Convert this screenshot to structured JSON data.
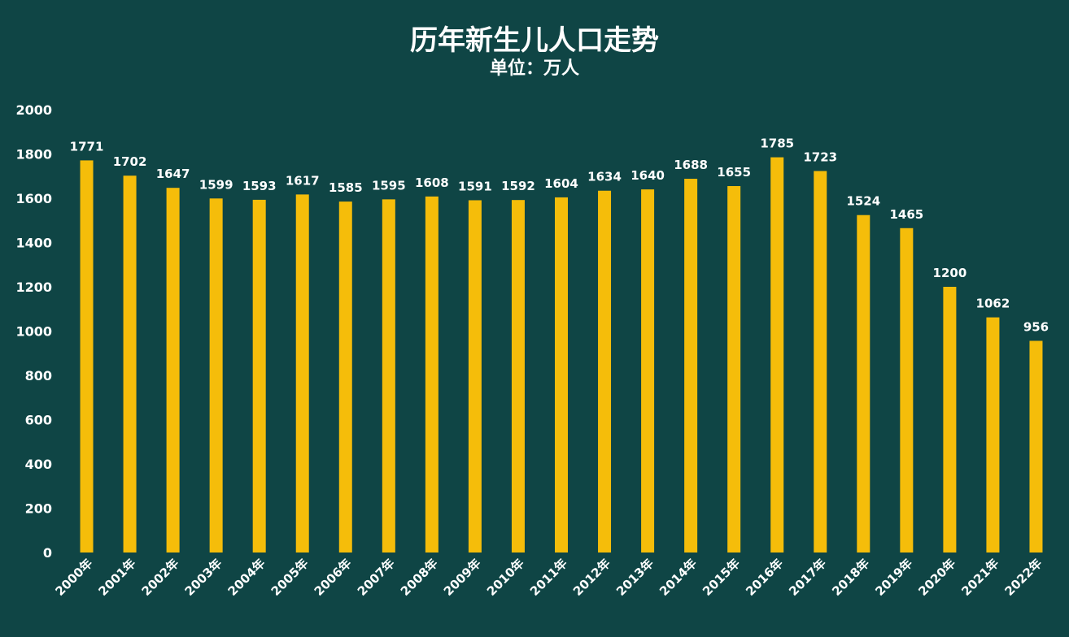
{
  "chart_data": {
    "type": "bar",
    "title": "历年新生儿人口走势",
    "subtitle": "单位：万人",
    "categories": [
      "2000年",
      "2001年",
      "2002年",
      "2003年",
      "2004年",
      "2005年",
      "2006年",
      "2007年",
      "2008年",
      "2009年",
      "2010年",
      "2011年",
      "2012年",
      "2013年",
      "2014年",
      "2015年",
      "2016年",
      "2017年",
      "2018年",
      "2019年",
      "2020年",
      "2021年",
      "2022年"
    ],
    "values": [
      1771,
      1702,
      1647,
      1599,
      1593,
      1617,
      1585,
      1595,
      1608,
      1591,
      1592,
      1604,
      1634,
      1640,
      1688,
      1655,
      1785,
      1723,
      1524,
      1465,
      1200,
      1062,
      956
    ],
    "ylim": [
      0,
      2000
    ],
    "yticks": [
      0,
      200,
      400,
      600,
      800,
      1000,
      1200,
      1400,
      1600,
      1800,
      2000
    ],
    "grid": false,
    "legend": "none",
    "bar_color": "#f5bd0a",
    "background_color": "#0f4545",
    "text_color": "#ffffff"
  }
}
